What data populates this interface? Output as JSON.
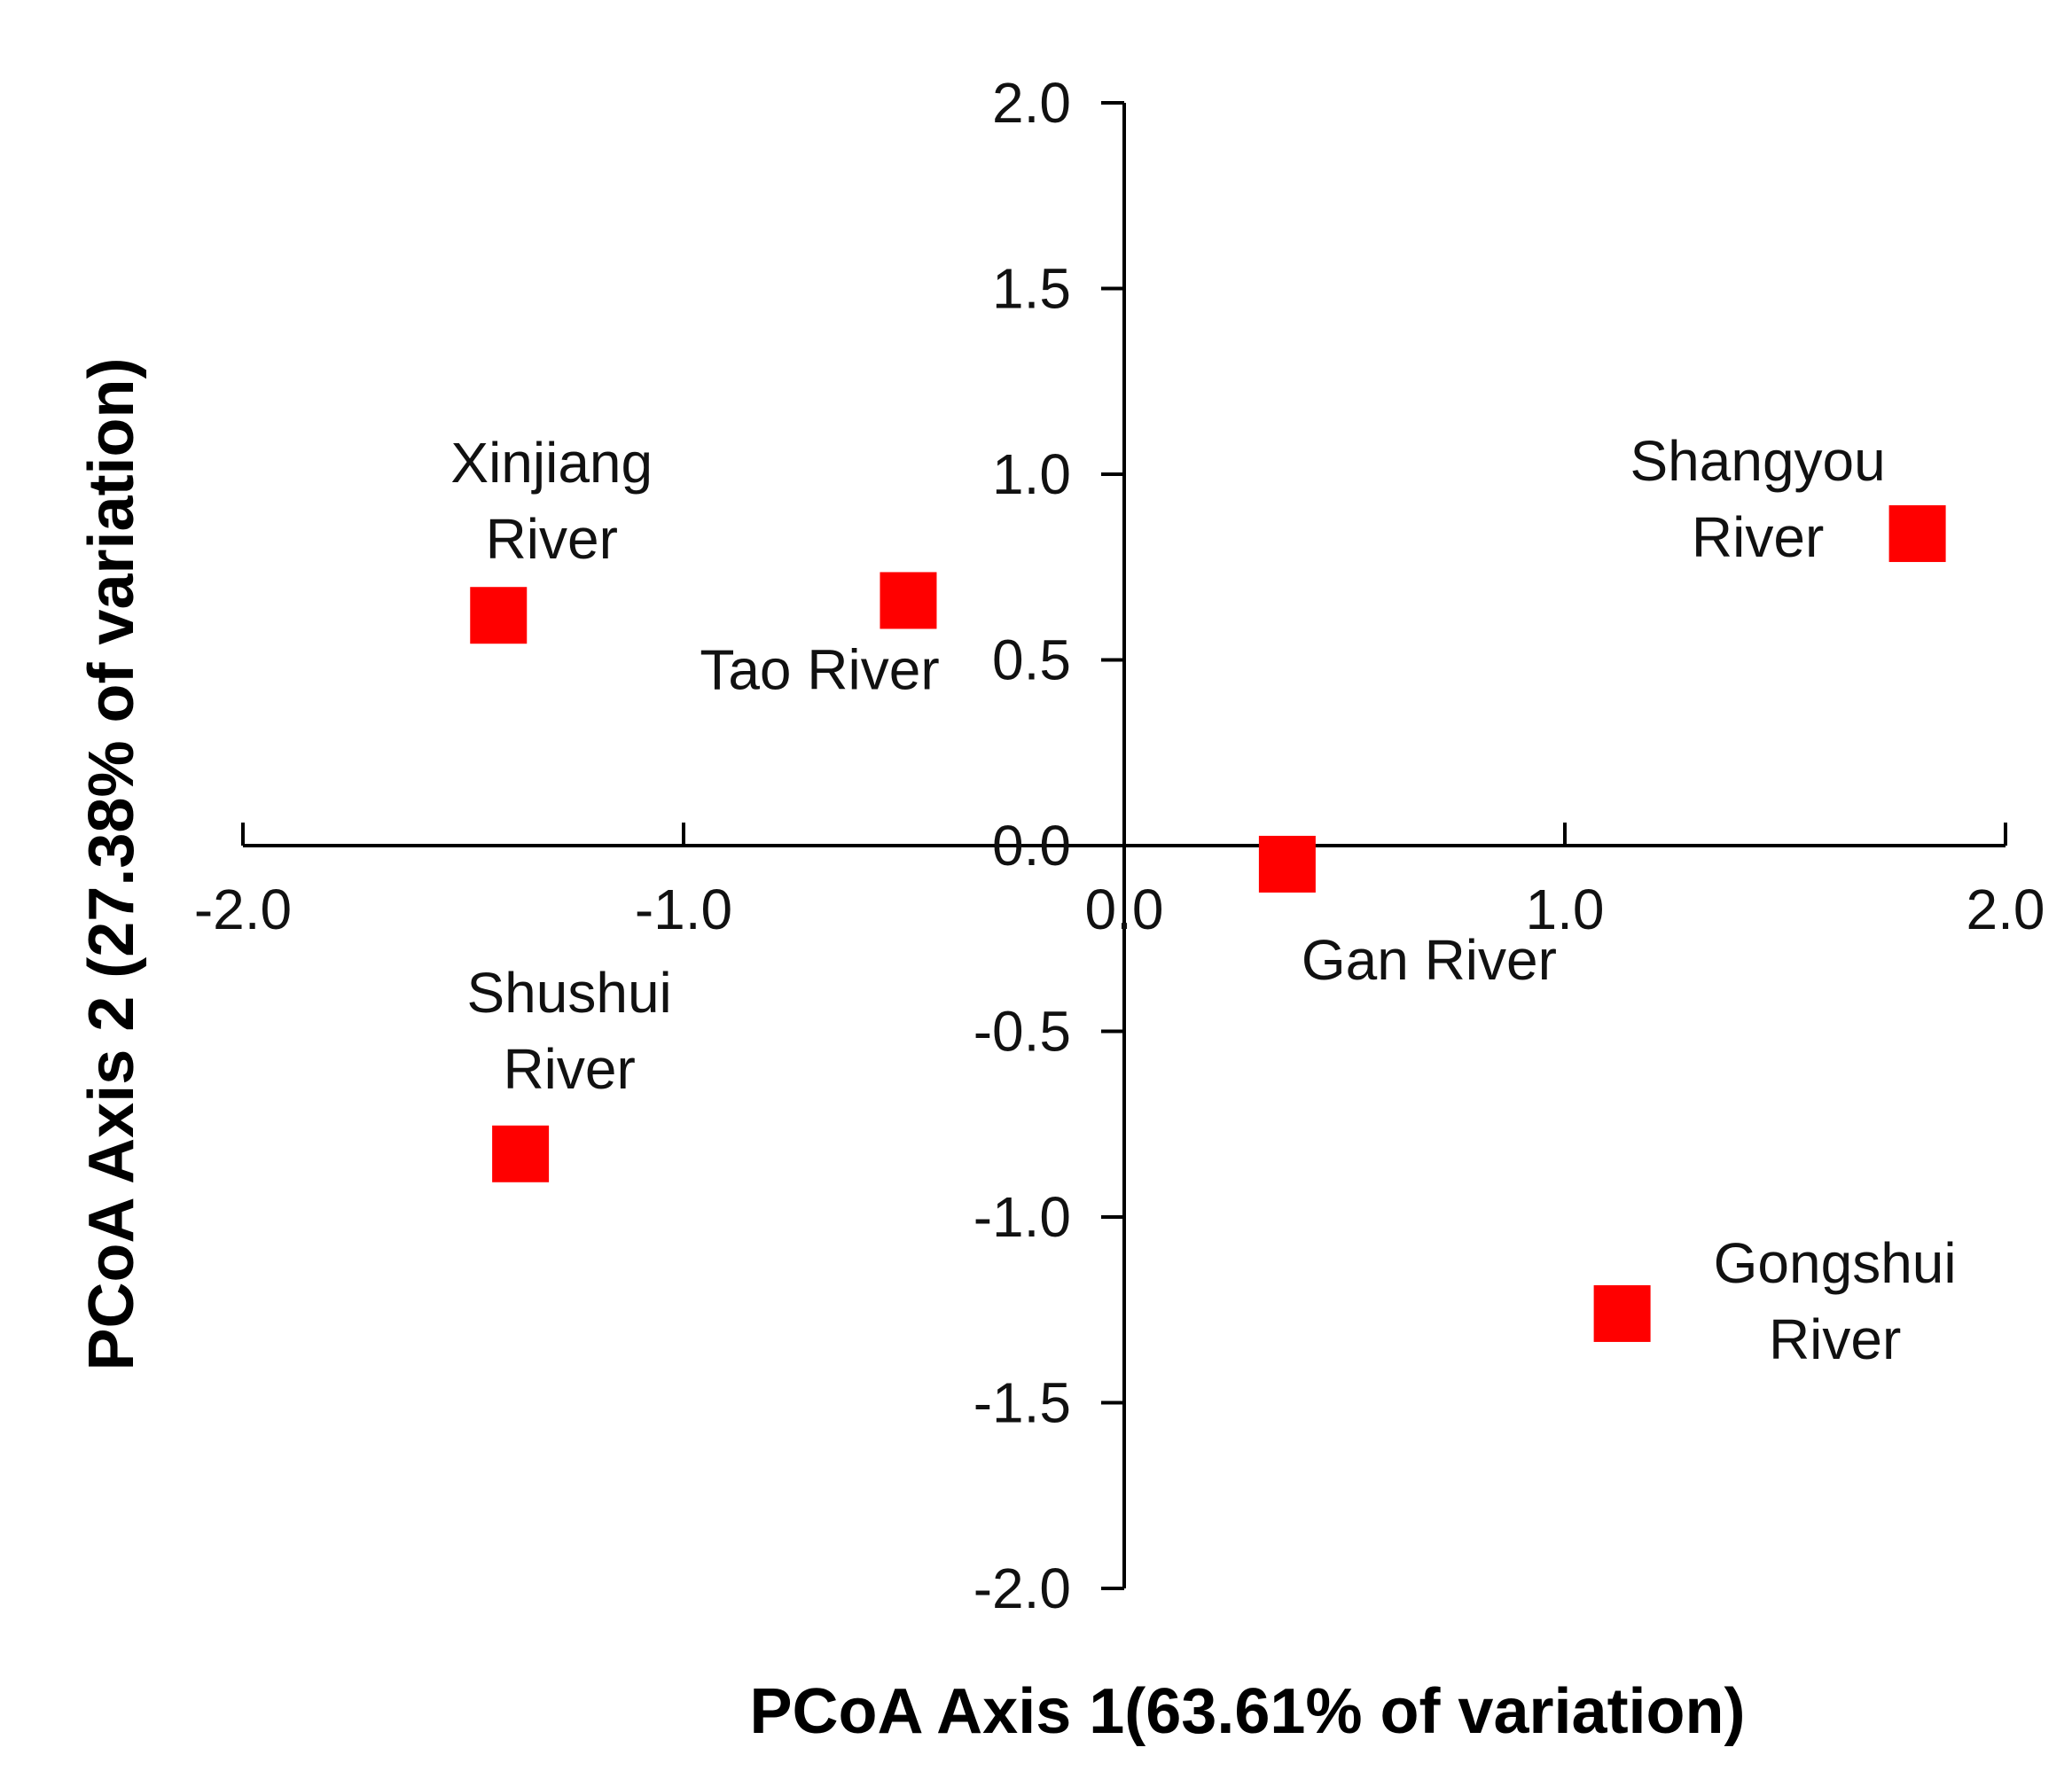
{
  "chart_data": {
    "type": "scatter",
    "title": "",
    "xlabel": "PCoA Axis 1(63.61% of variation)",
    "ylabel": "PCoA Axis 2 (27.38% of variation)",
    "xlim": [
      -2.0,
      2.0
    ],
    "ylim": [
      -2.0,
      2.0
    ],
    "x_ticks": [
      -2.0,
      -1.0,
      0.0,
      1.0,
      2.0
    ],
    "x_tick_labels": [
      "-2.0",
      "-1.0",
      "0.0",
      "1.0",
      "2.0"
    ],
    "y_ticks": [
      2.0,
      1.5,
      1.0,
      0.5,
      0.0,
      -0.5,
      -1.0,
      -1.5,
      -2.0
    ],
    "y_tick_labels": [
      "2.0",
      "1.5",
      "1.0",
      "0.5",
      "0.0",
      "-0.5",
      "-1.0",
      "-1.5",
      "-2.0"
    ],
    "grid": false,
    "marker": {
      "shape": "square",
      "color": "#ff0000"
    },
    "points": [
      {
        "label_lines": [
          "Xinjiang",
          "River"
        ],
        "x": -1.42,
        "y": 0.62
      },
      {
        "label_lines": [
          "Tao River"
        ],
        "x": -0.49,
        "y": 0.66
      },
      {
        "label_lines": [
          "Shangyou",
          "River"
        ],
        "x": 1.8,
        "y": 0.84
      },
      {
        "label_lines": [
          "Gan River"
        ],
        "x": 0.37,
        "y": -0.05
      },
      {
        "label_lines": [
          "Shushui",
          "River"
        ],
        "x": -1.37,
        "y": -0.83
      },
      {
        "label_lines": [
          "Gongshui",
          "River"
        ],
        "x": 1.13,
        "y": -1.26
      }
    ]
  }
}
